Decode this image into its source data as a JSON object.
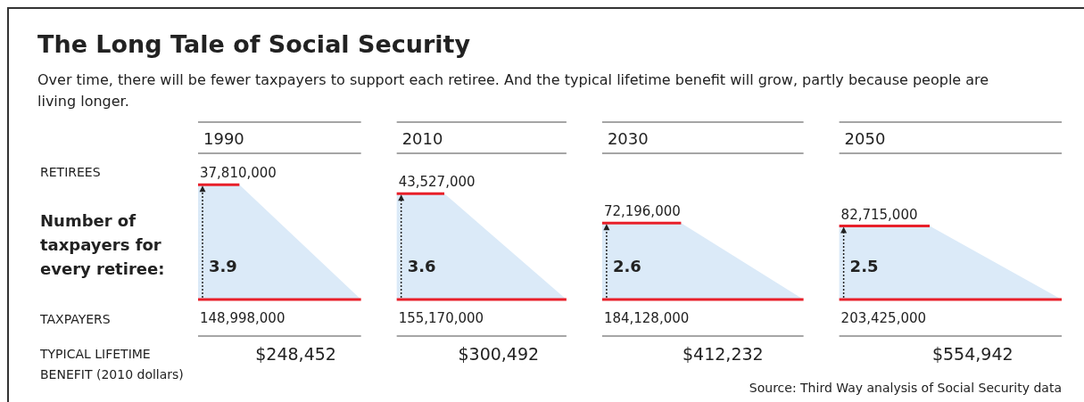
{
  "chart_data": {
    "type": "other",
    "title": "The Long Tale of Social Security",
    "subtitle": "Over time, there will be fewer taxpayers to support each retiree. And the typical lifetime benefit will grow, partly because people are living longer.",
    "categories": [
      "1990",
      "2010",
      "2030",
      "2050"
    ],
    "series": [
      {
        "color": "#e8202a",
        "values": [
          37810000,
          43527000,
          72196000,
          82715000
        ],
        "value_labels": [
          "37,810,000",
          "43,527,000",
          "72,196,000",
          "82,715,000"
        ]
      },
      {
        "name": "Number of taxpayers for every retiree:",
        "color": "#dbeaf8",
        "values": [
          3.9,
          3.6,
          2.6,
          2.5
        ],
        "value_labels": [
          "3.9",
          "3.6",
          "2.6",
          "2.5"
        ]
      },
      {
        "color": "#e8202a",
        "values": [
          148998000,
          155170000,
          184128000,
          203425000
        ],
        "value_labels": [
          "148,998,000",
          "155,170,000",
          "184,128,000",
          "203,425,000"
        ]
      },
      {
        "name": "TYPICAL LIFETIME BENEFIT (2010 dollars)",
        "values": [
          248452,
          300492,
          412232,
          554942
        ],
        "value_labels": [
          "$248,452",
          "$300,492",
          "$412,232",
          "$554,942"
        ]
      }
    ],
    "annotations": [
      "Source: Third Way analysis of Social Security data",
      "RETIREES",
      "TAXPAYERS"
    ]
  }
}
